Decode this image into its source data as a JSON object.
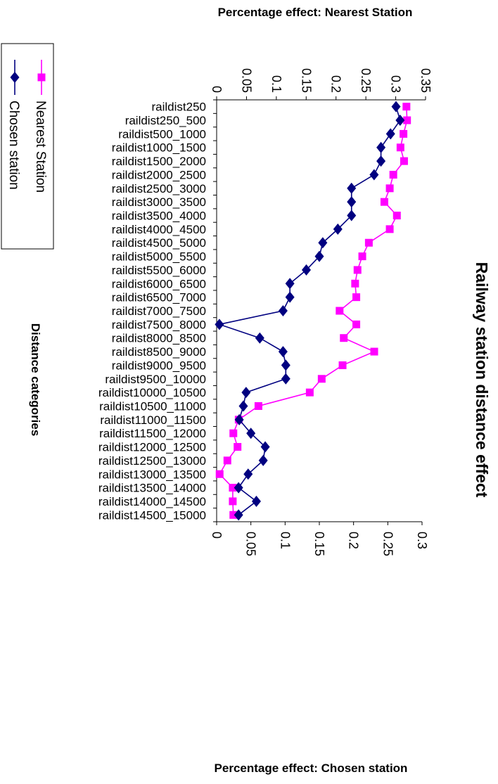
{
  "chart_data": {
    "type": "line",
    "orientation": "rotated-90-clockwise",
    "title": "Railway station distance effect",
    "category_axis_title": "Distance categories",
    "top_axis_title": "Percentage effect: Nearest Station",
    "bottom_axis_title": "Percentage effect: Chosen station",
    "top_axis_range": [
      0,
      0.35
    ],
    "top_axis_ticks": [
      "0",
      "0.05",
      "0.1",
      "0.15",
      "0.2",
      "0.25",
      "0.3",
      "0.35"
    ],
    "bottom_axis_range": [
      0,
      0.3
    ],
    "bottom_axis_ticks": [
      "0",
      "0.05",
      "0.1",
      "0.15",
      "0.2",
      "0.25",
      "0.3"
    ],
    "grid": false,
    "legend_position": "left",
    "categories": [
      "raildist250",
      "raildist250_500",
      "raildist500_1000",
      "raildist1000_1500",
      "raildist1500_2000",
      "raildist2000_2500",
      "raildist2500_3000",
      "raildist3000_3500",
      "raildist3500_4000",
      "raildist4000_4500",
      "raildist4500_5000",
      "raildist5000_5500",
      "raildist5500_6000",
      "raildist6000_6500",
      "raildist6500_7000",
      "raildist7000_7500",
      "raildist7500_8000",
      "raildist8000_8500",
      "raildist8500_9000",
      "raildist9000_9500",
      "raildist9500_10000",
      "raildist10000_10500",
      "raildist10500_11000",
      "raildist11000_11500",
      "raildist11500_12000",
      "raildist12000_12500",
      "raildist12500_13000",
      "raildist13000_13500",
      "raildist13500_14000",
      "raildist14000_14500",
      "raildist14500_15000"
    ],
    "series": [
      {
        "name": "Nearest Station",
        "axis": "top",
        "color": "#ff00ff",
        "marker": "square",
        "values": [
          0.318,
          0.319,
          0.313,
          0.308,
          0.314,
          0.296,
          0.29,
          0.281,
          0.302,
          0.29,
          0.255,
          0.244,
          0.236,
          0.232,
          0.234,
          0.206,
          0.234,
          0.213,
          0.264,
          0.211,
          0.176,
          0.156,
          0.07,
          0.037,
          0.028,
          0.035,
          0.018,
          0.005,
          0.027,
          0.027,
          0.028
        ]
      },
      {
        "name": "Chosen station",
        "axis": "bottom",
        "color": "#000080",
        "marker": "diamond",
        "values": [
          0.262,
          0.268,
          0.254,
          0.24,
          0.24,
          0.23,
          0.197,
          0.197,
          0.197,
          0.177,
          0.155,
          0.15,
          0.131,
          0.107,
          0.107,
          0.097,
          0.004,
          0.063,
          0.097,
          0.101,
          0.101,
          0.043,
          0.039,
          0.033,
          0.05,
          0.071,
          0.068,
          0.046,
          0.032,
          0.058,
          0.032
        ]
      }
    ]
  }
}
